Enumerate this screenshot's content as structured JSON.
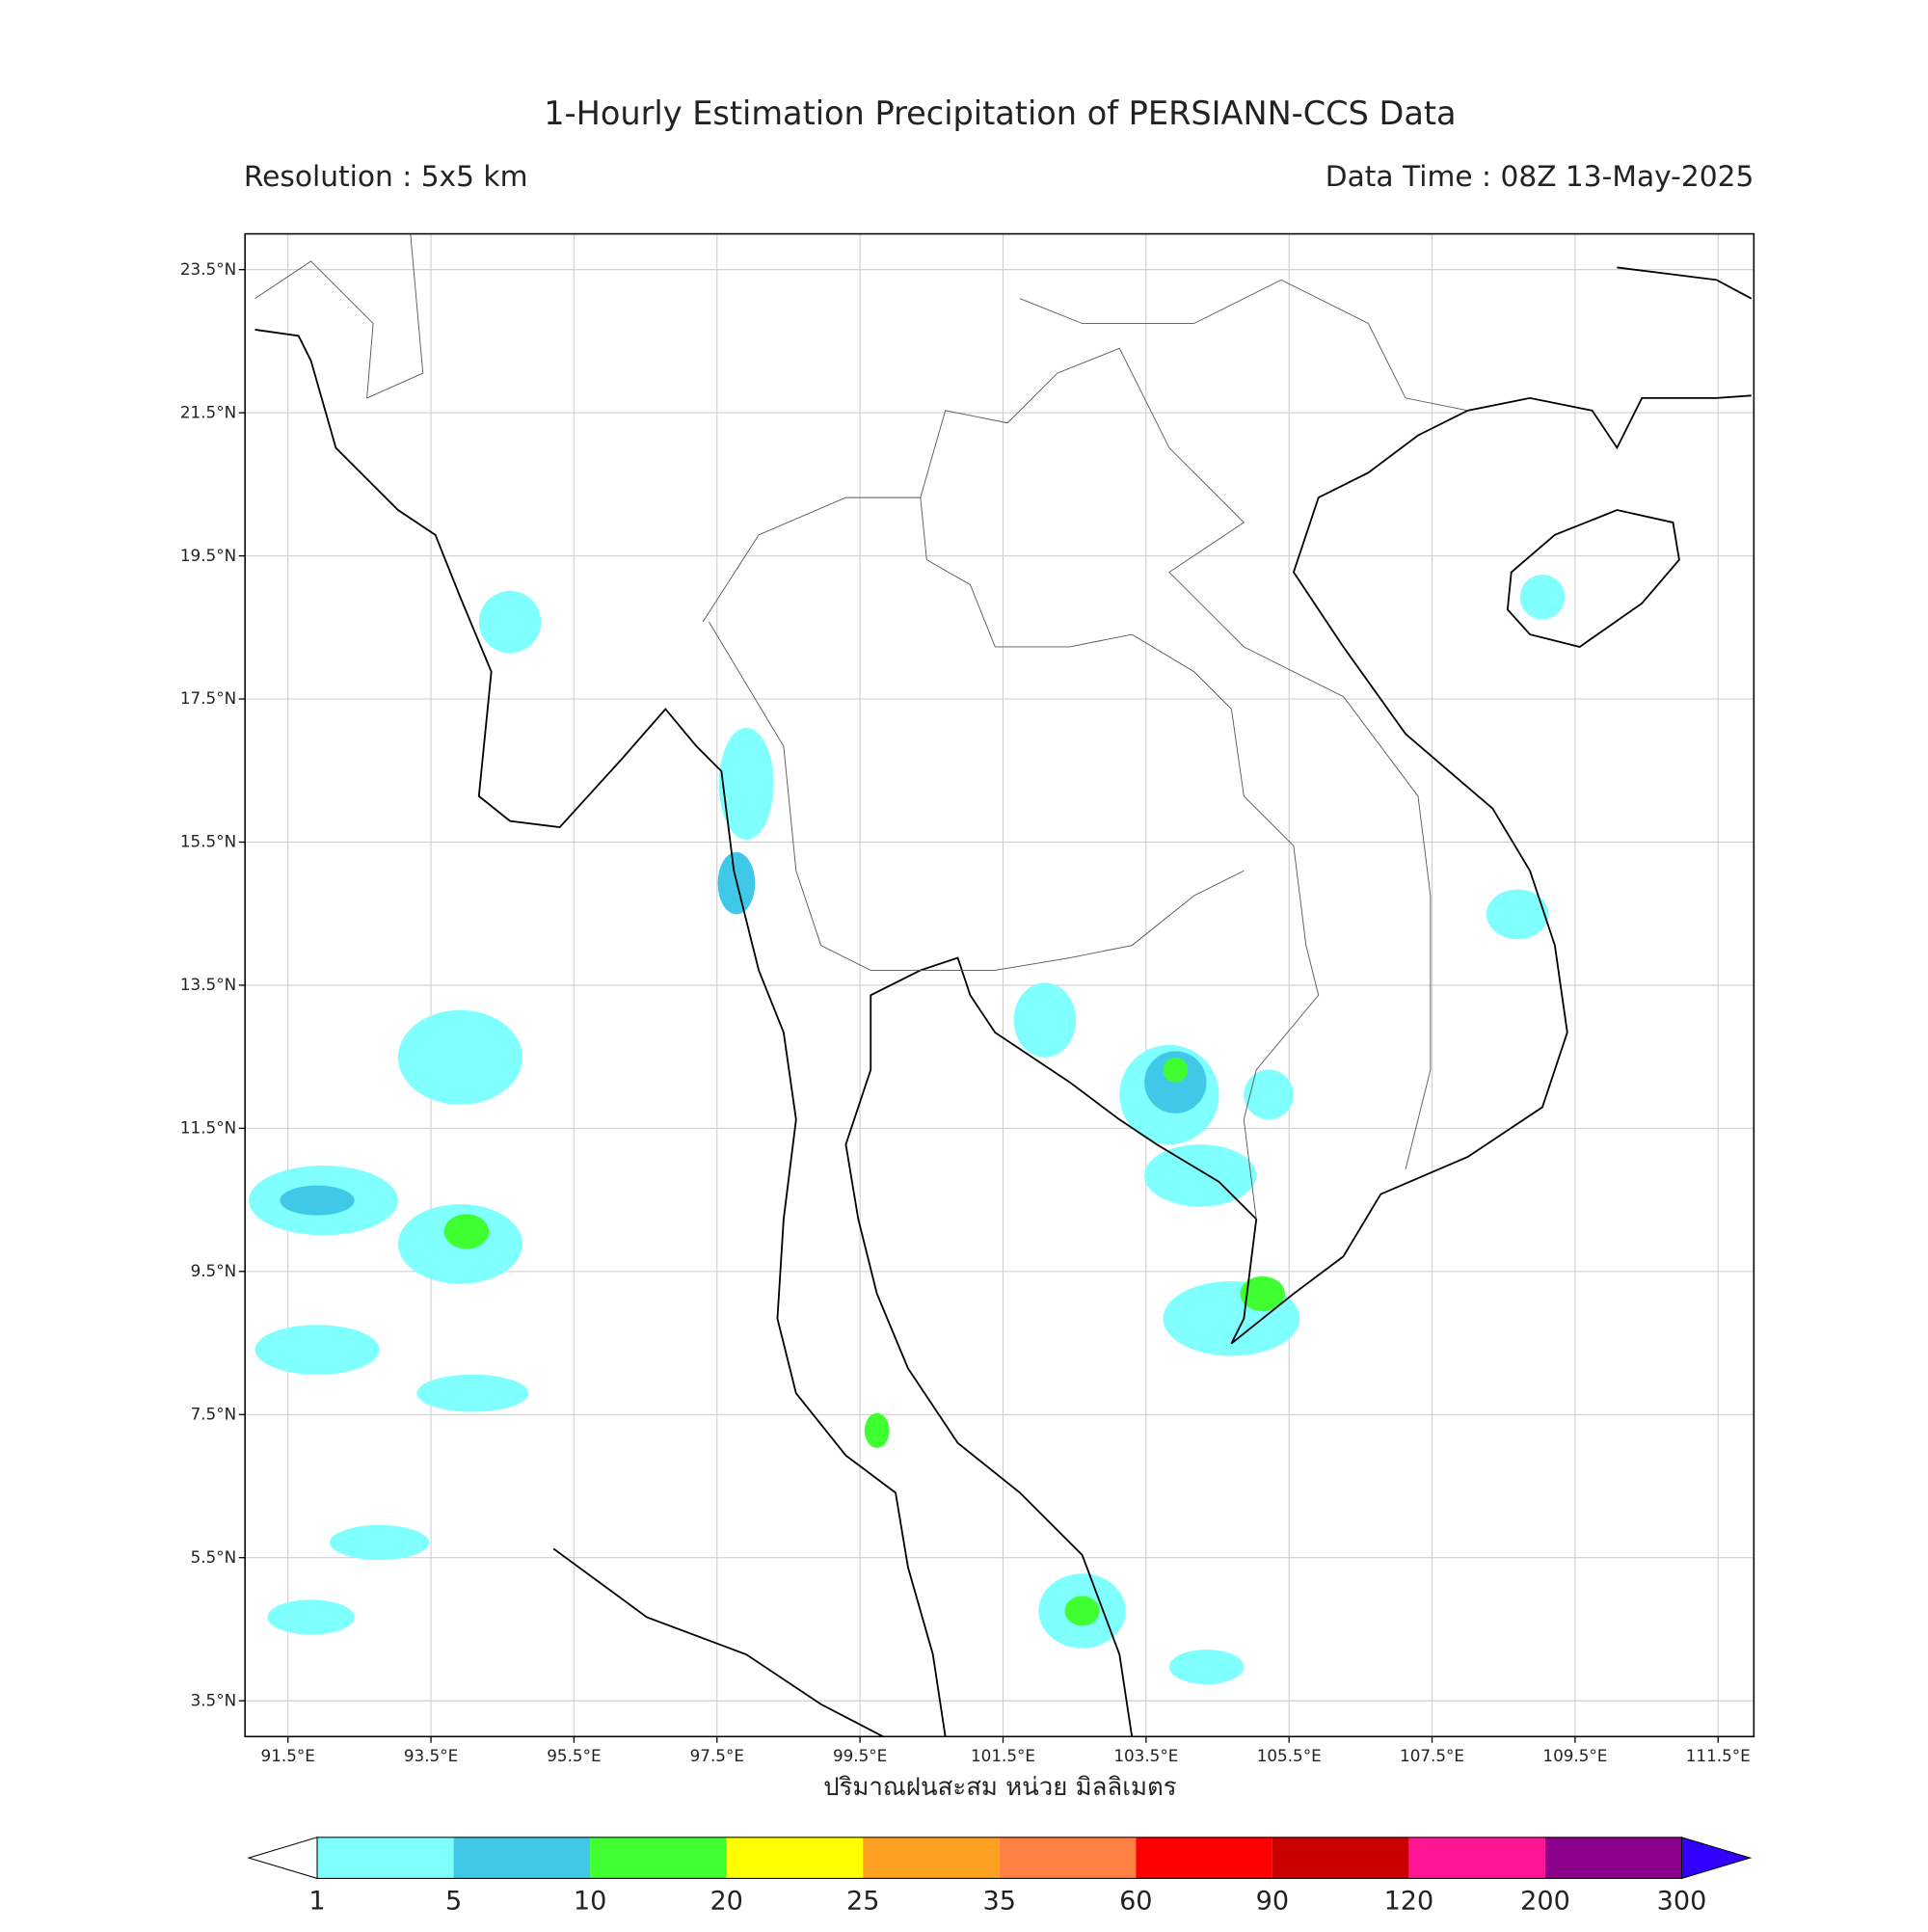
{
  "header": {
    "title": "1-Hourly Estimation Precipitation of PERSIANN-CCS Data",
    "resolution": "Resolution : 5x5 km",
    "data_time": "Data Time : 08Z 13-May-2025"
  },
  "map": {
    "lonlim": [
      90.9,
      112.0
    ],
    "latlim": [
      3.0,
      24.0
    ],
    "grid": true,
    "lonticks": [
      {
        "value": 91.5,
        "label": "91.5°E"
      },
      {
        "value": 93.5,
        "label": "93.5°E"
      },
      {
        "value": 95.5,
        "label": "95.5°E"
      },
      {
        "value": 97.5,
        "label": "97.5°E"
      },
      {
        "value": 99.5,
        "label": "99.5°E"
      },
      {
        "value": 101.5,
        "label": "101.5°E"
      },
      {
        "value": 103.5,
        "label": "103.5°E"
      },
      {
        "value": 105.5,
        "label": "105.5°E"
      },
      {
        "value": 107.5,
        "label": "107.5°E"
      },
      {
        "value": 109.5,
        "label": "109.5°E"
      },
      {
        "value": 111.5,
        "label": "111.5°E"
      }
    ],
    "latticks": [
      {
        "value": 23.5,
        "label": "23.5°N"
      },
      {
        "value": 21.5,
        "label": "21.5°N"
      },
      {
        "value": 19.5,
        "label": "19.5°N"
      },
      {
        "value": 17.5,
        "label": "17.5°N"
      },
      {
        "value": 15.5,
        "label": "15.5°N"
      },
      {
        "value": 13.5,
        "label": "13.5°N"
      },
      {
        "value": 11.5,
        "label": "11.5°N"
      },
      {
        "value": 9.5,
        "label": "9.5°N"
      },
      {
        "value": 7.5,
        "label": "7.5°N"
      },
      {
        "value": 5.5,
        "label": "5.5°N"
      },
      {
        "value": 3.5,
        "label": "3.5°N"
      }
    ],
    "x_label": "ปริมาณฝนสะสม หน่วย มิลลิเมตร"
  },
  "colorbar": {
    "levels": [
      1,
      5,
      10,
      20,
      25,
      35,
      60,
      90,
      120,
      200,
      300
    ],
    "colors": [
      "#80ffff",
      "#40c8e8",
      "#40ff30",
      "#ffff00",
      "#ffa020",
      "#ff8040",
      "#ff0000",
      "#c80000",
      "#ff1493",
      "#8b008b"
    ],
    "under_color": "#ffffff",
    "over_color": "#3300ff"
  }
}
